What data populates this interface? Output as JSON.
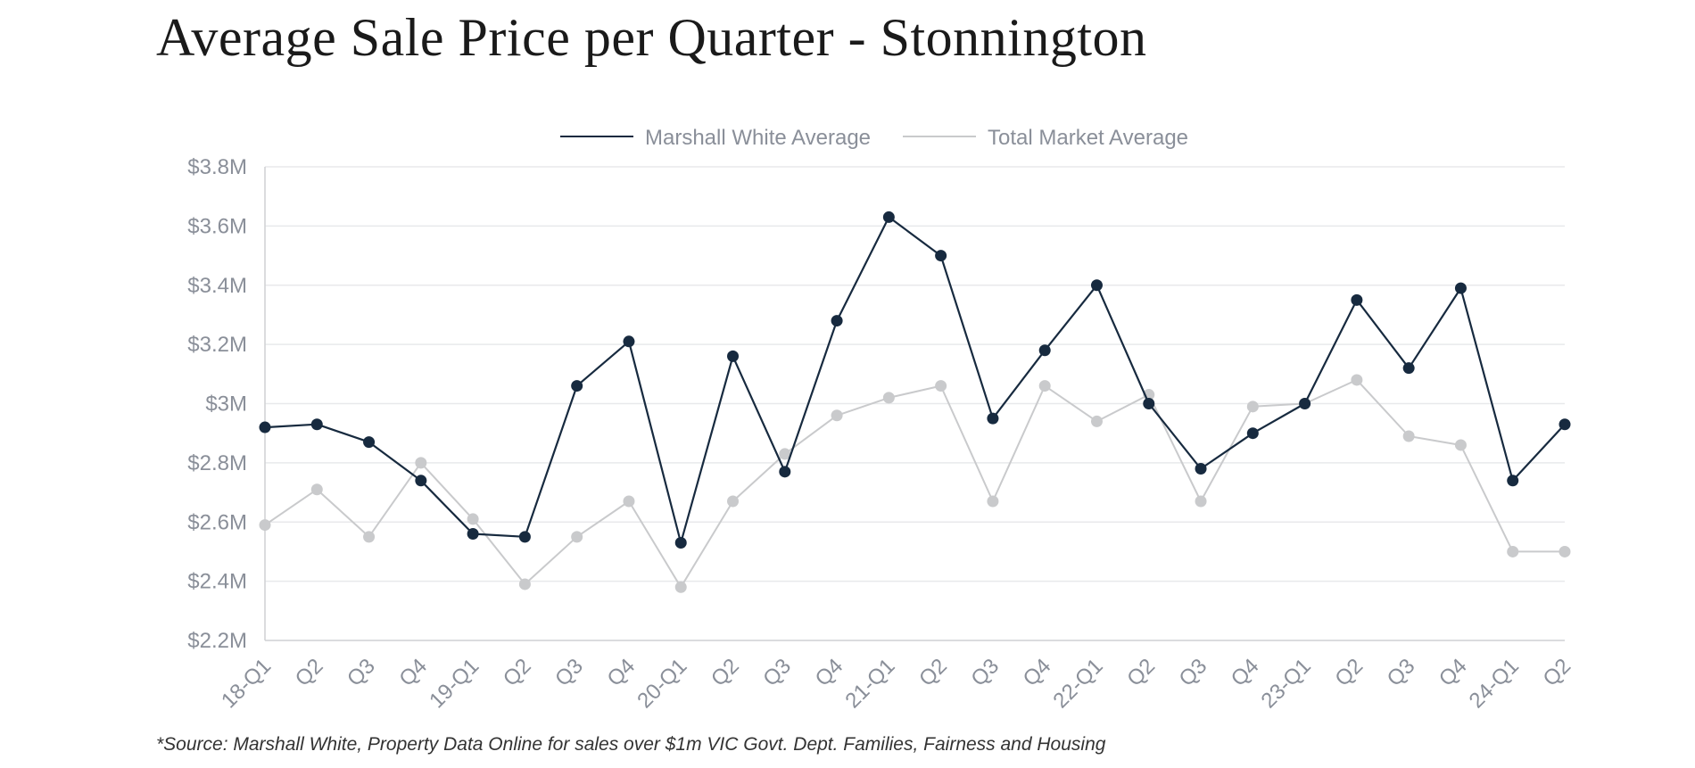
{
  "title": "Average Sale Price per Quarter - Stonnington",
  "footnote": "*Source: Marshall White, Property Data Online for sales over $1m VIC Govt. Dept. Families, Fairness and Housing",
  "colors": {
    "marshall_white": "#172a3f",
    "total_market": "#c9cacc",
    "grid": "#e8e9eb",
    "axis_text": "#8a8f99"
  },
  "chart_data": {
    "type": "line",
    "title": "Average Sale Price per Quarter - Stonnington",
    "categories": [
      "18-Q1",
      "Q2",
      "Q3",
      "Q4",
      "19-Q1",
      "Q2",
      "Q3",
      "Q4",
      "20-Q1",
      "Q2",
      "Q3",
      "Q4",
      "21-Q1",
      "Q2",
      "Q3",
      "Q4",
      "22-Q1",
      "Q2",
      "Q3",
      "Q4",
      "23-Q1",
      "Q2",
      "Q3",
      "Q4",
      "24-Q1",
      "Q2"
    ],
    "y_ticks": [
      "$2.2M",
      "$2.4M",
      "$2.6M",
      "$2.8M",
      "$3M",
      "$3.2M",
      "$3.4M",
      "$3.6M",
      "$3.8M"
    ],
    "ylim": [
      2.2,
      3.8
    ],
    "y_unit": "$M",
    "grid": true,
    "legend_position": "top-center",
    "series": [
      {
        "name": "Marshall White Average",
        "color": "#172a3f",
        "values": [
          2.92,
          2.93,
          2.87,
          2.74,
          2.56,
          2.55,
          3.06,
          3.21,
          2.53,
          3.16,
          2.77,
          3.28,
          3.63,
          3.5,
          2.95,
          3.18,
          3.4,
          3.0,
          2.78,
          2.9,
          3.0,
          3.35,
          3.12,
          3.39,
          2.74,
          2.93
        ]
      },
      {
        "name": "Total Market Average",
        "color": "#c9cacc",
        "values": [
          2.59,
          2.71,
          2.55,
          2.8,
          2.61,
          2.39,
          2.55,
          2.67,
          2.38,
          2.67,
          2.83,
          2.96,
          3.02,
          3.06,
          2.67,
          3.06,
          2.94,
          3.03,
          2.67,
          2.99,
          3.0,
          3.08,
          2.89,
          2.86,
          2.5,
          2.5
        ]
      }
    ]
  }
}
